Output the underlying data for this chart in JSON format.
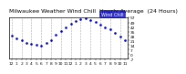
{
  "title": "Milwaukee Weather Wind Chill  Hourly Average  (24 Hours)",
  "hours": [
    0,
    1,
    2,
    3,
    4,
    5,
    6,
    7,
    8,
    9,
    10,
    11,
    12,
    13,
    14,
    15,
    16,
    17,
    18,
    19,
    20,
    21,
    22,
    23
  ],
  "wind_chill": [
    28,
    24,
    21,
    18,
    16,
    14,
    13,
    17,
    22,
    30,
    36,
    42,
    47,
    51,
    54,
    55,
    53,
    50,
    46,
    42,
    38,
    33,
    27,
    22
  ],
  "ylim": [
    -7,
    57
  ],
  "yticks": [
    -7,
    0,
    7,
    14,
    21,
    28,
    35,
    42,
    49,
    57
  ],
  "xtick_positions": [
    0,
    1,
    2,
    3,
    4,
    5,
    6,
    7,
    8,
    9,
    10,
    11,
    12,
    13,
    14,
    15,
    16,
    17,
    18,
    19,
    20,
    21,
    22,
    23
  ],
  "xtick_labels": [
    "12",
    "1",
    "2",
    "3",
    "4",
    "5",
    "6",
    "7",
    "8",
    "9",
    "10",
    "11",
    "12",
    "1",
    "2",
    "3",
    "4",
    "5",
    "6",
    "7",
    "8",
    "9",
    "10",
    "11"
  ],
  "grid_positions": [
    0,
    2,
    4,
    6,
    8,
    10,
    12,
    14,
    16,
    18,
    20,
    22
  ],
  "dot_color": "#0000cc",
  "bg_color": "#ffffff",
  "grid_color": "#aaaaaa",
  "legend_label": "Wind Chill",
  "legend_bg": "#0000bb",
  "legend_text_color": "#ffffff",
  "title_fontsize": 4.5,
  "tick_fontsize": 3.2,
  "legend_fontsize": 3.5
}
